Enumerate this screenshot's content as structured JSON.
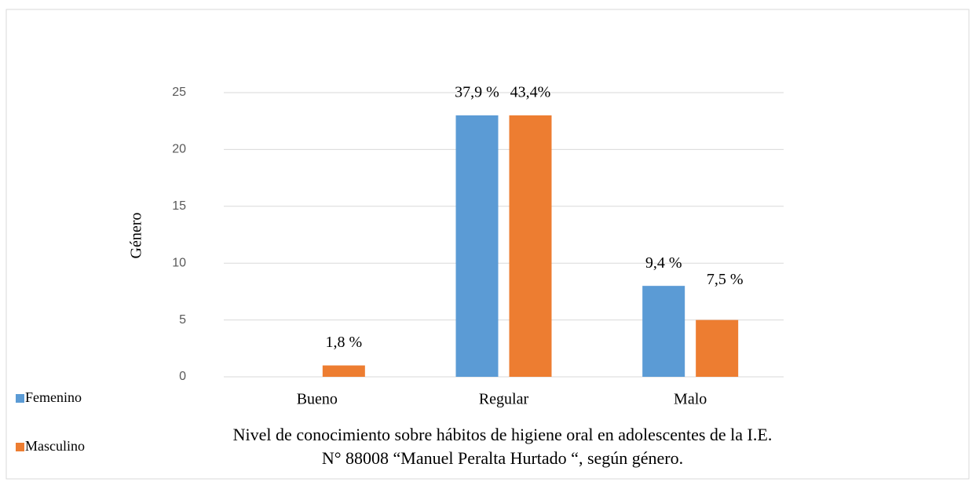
{
  "chart_data": {
    "type": "bar",
    "title_lines": [
      "Nivel de conocimiento sobre hábitos de higiene oral en adolescentes de la I.E.",
      "N° 88008 “Manuel Peralta Hurtado “, según género."
    ],
    "y_label": "Género",
    "categories": [
      "Bueno",
      "Regular",
      "Malo"
    ],
    "series": [
      {
        "name": "Femenino",
        "color": "#5b9bd5",
        "values": [
          0,
          23,
          8
        ],
        "labels": [
          null,
          "37,9 %",
          "9,4 %"
        ]
      },
      {
        "name": "Masculino",
        "color": "#ed7d31",
        "values": [
          1,
          23,
          5
        ],
        "labels": [
          "1,8 %",
          "43,4%",
          "7,5 %"
        ]
      }
    ],
    "ylim": [
      0,
      25
    ],
    "yticks": [
      0,
      5,
      10,
      15,
      20,
      25
    ],
    "grid": true,
    "legend": "left"
  }
}
